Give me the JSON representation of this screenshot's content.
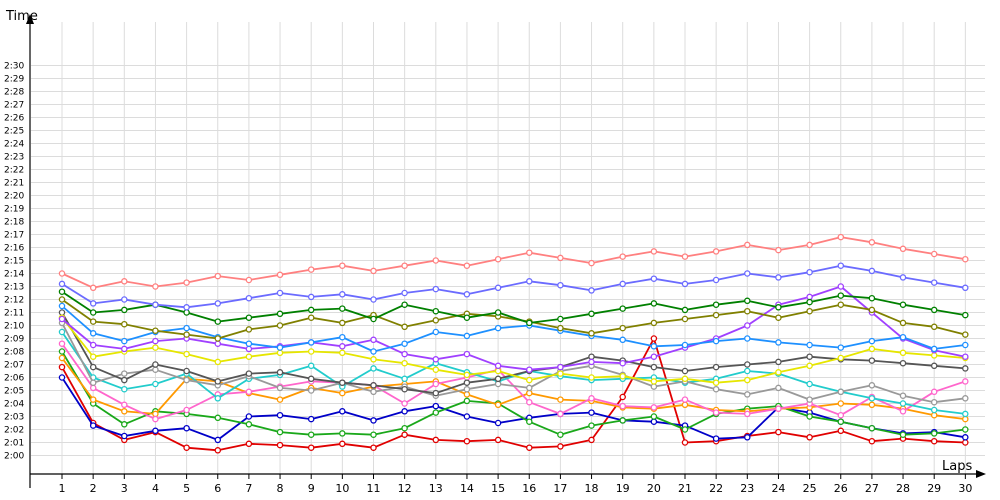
{
  "chart_data": {
    "type": "line",
    "xlabel": "Laps",
    "ylabel": "Time",
    "xlim": [
      1,
      30
    ],
    "ylim_seconds": [
      120,
      150
    ],
    "x": [
      1,
      2,
      3,
      4,
      5,
      6,
      7,
      8,
      9,
      10,
      11,
      12,
      13,
      14,
      15,
      16,
      17,
      18,
      19,
      20,
      21,
      22,
      23,
      24,
      25,
      26,
      27,
      28,
      29,
      30
    ],
    "x_ticks": [
      "1",
      "2",
      "3",
      "4",
      "5",
      "6",
      "7",
      "8",
      "9",
      "10",
      "11",
      "12",
      "13",
      "14",
      "15",
      "16",
      "17",
      "18",
      "19",
      "20",
      "21",
      "22",
      "23",
      "24",
      "25",
      "26",
      "27",
      "28",
      "29",
      "30"
    ],
    "y_ticks": [
      "2:00",
      "2:01",
      "2:02",
      "2:03",
      "2:04",
      "2:05",
      "2:06",
      "2:07",
      "2:08",
      "2:09",
      "2:10",
      "2:11",
      "2:12",
      "2:13",
      "2:14",
      "2:15",
      "2:16",
      "2:17",
      "2:18",
      "2:19",
      "2:20",
      "2:21",
      "2:22",
      "2:23",
      "2:24",
      "2:25",
      "2:26",
      "2:27",
      "2:28",
      "2:29",
      "2:30"
    ],
    "y_unit": "seconds (2:00 = 120)",
    "grid": true,
    "series": [
      {
        "color": "#e00000",
        "values": [
          126.8,
          122.5,
          121.2,
          121.8,
          120.6,
          120.4,
          120.9,
          120.8,
          120.6,
          120.9,
          120.6,
          121.6,
          121.2,
          121.1,
          121.2,
          120.6,
          120.7,
          121.2,
          124.5,
          129.0,
          121.0,
          121.1,
          121.5,
          121.8,
          121.4,
          121.9,
          121.1,
          121.3,
          121.1,
          121.0
        ]
      },
      {
        "color": "#0000c8",
        "values": [
          126.0,
          122.3,
          121.5,
          121.9,
          122.1,
          121.2,
          123.0,
          123.1,
          122.8,
          123.4,
          122.7,
          123.4,
          123.8,
          123.0,
          122.5,
          122.9,
          123.2,
          123.3,
          122.7,
          122.6,
          122.3,
          121.3,
          121.4,
          123.7,
          123.3,
          122.6,
          122.1,
          121.7,
          121.8,
          121.4
        ]
      },
      {
        "color": "#1aa81a",
        "values": [
          128.0,
          124.0,
          122.4,
          123.4,
          123.2,
          122.9,
          122.4,
          121.8,
          121.6,
          121.7,
          121.6,
          122.1,
          123.3,
          124.2,
          124.0,
          122.6,
          121.6,
          122.3,
          122.7,
          123.0,
          122.0,
          123.2,
          123.6,
          123.8,
          123.0,
          122.6,
          122.1,
          121.6,
          121.7,
          122.0
        ]
      },
      {
        "color": "#ff9900",
        "values": [
          127.5,
          124.3,
          123.4,
          123.2,
          125.9,
          125.7,
          124.8,
          124.3,
          125.2,
          124.8,
          125.3,
          125.5,
          125.7,
          124.7,
          123.9,
          124.8,
          124.3,
          124.2,
          123.7,
          123.6,
          123.9,
          123.5,
          123.4,
          123.6,
          123.7,
          124.0,
          123.9,
          123.6,
          123.1,
          122.8
        ]
      },
      {
        "color": "#ff66cc",
        "values": [
          128.6,
          125.2,
          123.9,
          122.8,
          123.5,
          124.7,
          124.9,
          125.3,
          125.7,
          125.6,
          125.4,
          124.0,
          125.5,
          126.0,
          126.6,
          124.1,
          123.2,
          124.4,
          123.8,
          123.7,
          124.3,
          123.3,
          123.2,
          123.6,
          124.0,
          123.1,
          124.5,
          123.4,
          124.9,
          125.7
        ]
      },
      {
        "color": "#22cccc",
        "values": [
          129.5,
          126.0,
          125.1,
          125.5,
          126.3,
          124.4,
          125.9,
          126.2,
          126.9,
          125.3,
          126.7,
          125.9,
          127.1,
          126.4,
          125.7,
          126.5,
          126.1,
          125.8,
          125.9,
          126.0,
          125.6,
          125.9,
          126.5,
          126.3,
          125.5,
          124.9,
          124.4,
          124.0,
          123.5,
          123.2
        ]
      },
      {
        "color": "#999999",
        "values": [
          130.2,
          125.6,
          126.3,
          126.6,
          125.8,
          125.4,
          126.1,
          125.2,
          125.0,
          125.6,
          124.9,
          125.3,
          124.6,
          125.1,
          125.5,
          125.2,
          126.5,
          126.9,
          126.2,
          125.3,
          125.7,
          125.1,
          124.7,
          125.2,
          124.3,
          124.9,
          125.4,
          124.6,
          124.1,
          124.4
        ]
      },
      {
        "color": "#555555",
        "values": [
          131.0,
          126.8,
          125.8,
          127.0,
          126.5,
          125.7,
          126.3,
          126.4,
          125.9,
          125.6,
          125.4,
          125.1,
          124.8,
          125.6,
          125.9,
          126.5,
          126.8,
          127.6,
          127.3,
          126.8,
          126.5,
          126.8,
          127.0,
          127.2,
          127.6,
          127.4,
          127.3,
          127.1,
          126.9,
          126.7
        ]
      },
      {
        "color": "#e6e600",
        "values": [
          130.6,
          127.6,
          128.0,
          128.3,
          127.8,
          127.2,
          127.6,
          127.9,
          128.0,
          127.9,
          127.4,
          127.1,
          126.6,
          126.2,
          126.5,
          125.8,
          126.3,
          126.0,
          126.1,
          125.7,
          125.9,
          125.6,
          125.8,
          126.4,
          126.9,
          127.5,
          128.2,
          127.9,
          127.7,
          127.5
        ]
      },
      {
        "color": "#a040ff",
        "values": [
          130.5,
          128.5,
          128.2,
          128.8,
          129.0,
          128.6,
          128.2,
          128.4,
          128.7,
          128.4,
          128.9,
          127.8,
          127.4,
          127.8,
          126.9,
          126.6,
          126.8,
          127.2,
          127.1,
          127.6,
          128.3,
          129.0,
          130.0,
          131.6,
          132.2,
          133.0,
          131.0,
          129.0,
          128.1,
          127.6
        ]
      },
      {
        "color": "#1e90ff",
        "values": [
          131.5,
          129.4,
          128.8,
          129.5,
          129.8,
          129.1,
          128.6,
          128.3,
          128.7,
          129.1,
          128.0,
          128.6,
          129.5,
          129.2,
          129.8,
          130.0,
          129.6,
          129.2,
          128.9,
          128.4,
          128.5,
          128.8,
          129.0,
          128.7,
          128.5,
          128.3,
          128.8,
          129.1,
          128.2,
          128.5
        ]
      },
      {
        "color": "#808000",
        "values": [
          132.0,
          130.3,
          130.1,
          129.6,
          129.3,
          129.0,
          129.7,
          130.0,
          130.6,
          130.2,
          130.8,
          129.9,
          130.4,
          130.9,
          130.7,
          130.3,
          129.8,
          129.4,
          129.8,
          130.2,
          130.5,
          130.8,
          131.1,
          130.6,
          131.1,
          131.6,
          131.2,
          130.2,
          129.9,
          129.3
        ]
      },
      {
        "color": "#008000",
        "values": [
          132.6,
          131.0,
          131.2,
          131.6,
          131.0,
          130.3,
          130.6,
          130.9,
          131.2,
          131.3,
          130.5,
          131.6,
          131.1,
          130.6,
          131.0,
          130.2,
          130.5,
          130.9,
          131.3,
          131.7,
          131.2,
          131.6,
          131.9,
          131.4,
          131.8,
          132.3,
          132.1,
          131.6,
          131.2,
          130.8
        ]
      },
      {
        "color": "#6b6bff",
        "values": [
          133.2,
          131.7,
          132.0,
          131.6,
          131.4,
          131.7,
          132.1,
          132.5,
          132.2,
          132.4,
          132.0,
          132.5,
          132.8,
          132.4,
          132.9,
          133.4,
          133.1,
          132.7,
          133.2,
          133.6,
          133.2,
          133.5,
          134.0,
          133.7,
          134.1,
          134.6,
          134.2,
          133.7,
          133.3,
          132.9
        ]
      },
      {
        "color": "#ff8080",
        "values": [
          134.0,
          132.9,
          133.4,
          133.0,
          133.3,
          133.8,
          133.5,
          133.9,
          134.3,
          134.6,
          134.2,
          134.6,
          135.0,
          134.6,
          135.1,
          135.6,
          135.2,
          134.8,
          135.3,
          135.7,
          135.3,
          135.7,
          136.2,
          135.8,
          136.2,
          136.8,
          136.4,
          135.9,
          135.5,
          135.1
        ]
      }
    ]
  }
}
